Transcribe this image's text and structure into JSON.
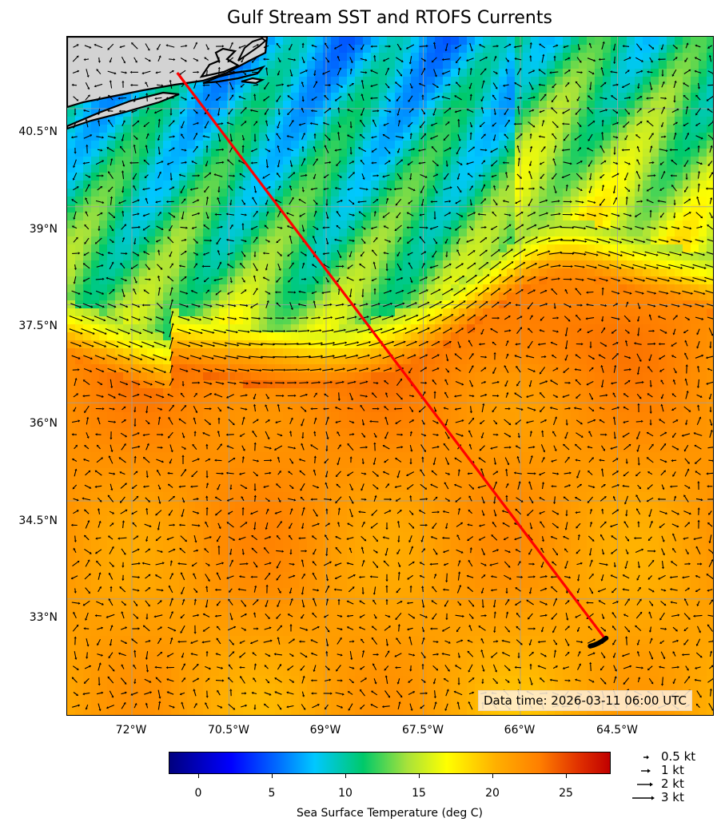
{
  "title": "Gulf Stream SST and RTOFS Currents",
  "map": {
    "lat_labels": [
      "40.5°N",
      "39°N",
      "37.5°N",
      "36°N",
      "34.5°N",
      "33°N"
    ],
    "lon_labels": [
      "72°W",
      "70.5°W",
      "69°W",
      "67.5°W",
      "66°W",
      "64.5°W"
    ],
    "lat_range": [
      31.2,
      41.6
    ],
    "lon_range": [
      73.0,
      63.0
    ],
    "track": {
      "start": {
        "lat": 41.05,
        "lon": 71.3
      },
      "end": {
        "lat": 32.4,
        "lon": 64.7
      },
      "color": "#ff0000"
    },
    "land_color": "#d3d3d3"
  },
  "data_time": "Data time: 2026-03-11 06:00 UTC",
  "colorbar": {
    "title": "Sea Surface Temperature (deg C)",
    "tick_labels": [
      "0",
      "5",
      "10",
      "15",
      "20",
      "25"
    ],
    "range": [
      -2,
      28
    ]
  },
  "quiver_key": [
    {
      "label": "0.5 kt",
      "speed": 0.5
    },
    {
      "label": "1 kt",
      "speed": 1
    },
    {
      "label": "2 kt",
      "speed": 2
    },
    {
      "label": "3 kt",
      "speed": 3
    }
  ]
}
